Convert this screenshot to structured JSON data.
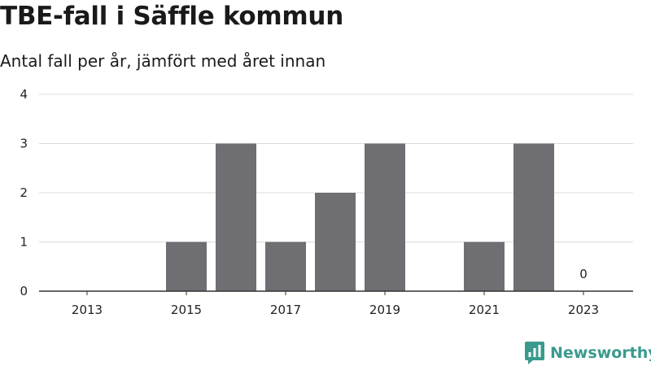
{
  "header": {
    "title": "TBE-fall i Säffle kommun",
    "subtitle": "Antal fall per år, jämfört med året innan"
  },
  "brand": {
    "name": "Newsworthy",
    "icon": "bar-chart-speech-bubble-icon",
    "color": "#3a9a8e"
  },
  "colors": {
    "bar": "#6f6e73",
    "grid": "#dcdcdc",
    "axis": "#333333"
  },
  "chart_data": {
    "type": "bar",
    "title": "TBE-fall i Säffle kommun",
    "subtitle": "Antal fall per år, jämfört med året innan",
    "categories": [
      "2013",
      "2014",
      "2015",
      "2016",
      "2017",
      "2018",
      "2019",
      "2020",
      "2021",
      "2022",
      "2023"
    ],
    "values": [
      0,
      0,
      1,
      3,
      1,
      2,
      3,
      0,
      1,
      3,
      0
    ],
    "x_tick_labels": [
      "2013",
      "2015",
      "2017",
      "2019",
      "2021",
      "2023"
    ],
    "y_ticks": [
      0,
      1,
      2,
      3,
      4
    ],
    "ylim": [
      0,
      4
    ],
    "data_labels": [
      {
        "category": "2023",
        "text": "0"
      }
    ],
    "grid": true,
    "legend": "none"
  }
}
